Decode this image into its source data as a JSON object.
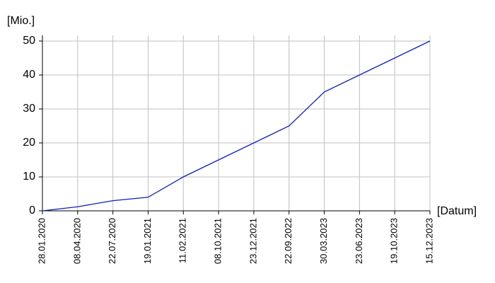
{
  "chart_data": {
    "type": "line",
    "y_label": "[Mio.]",
    "x_label": "[Datum]",
    "categories": [
      "28.01.2020",
      "08.04.2020",
      "22.07.2020",
      "19.01.2021",
      "11.02.2021",
      "08.10.2021",
      "23.12.2021",
      "22.09.2022",
      "30.03.2023",
      "23.06.2023",
      "19.10.2023",
      "15.12.2023"
    ],
    "series": [
      {
        "name": null,
        "color": "#1020b8",
        "values": [
          0,
          1.2,
          3,
          4,
          10,
          15,
          20,
          25,
          35,
          40,
          45,
          50
        ]
      }
    ],
    "ylim": [
      0,
      50
    ],
    "yticks": [
      0,
      10,
      20,
      30,
      40,
      50
    ],
    "grid": true
  }
}
